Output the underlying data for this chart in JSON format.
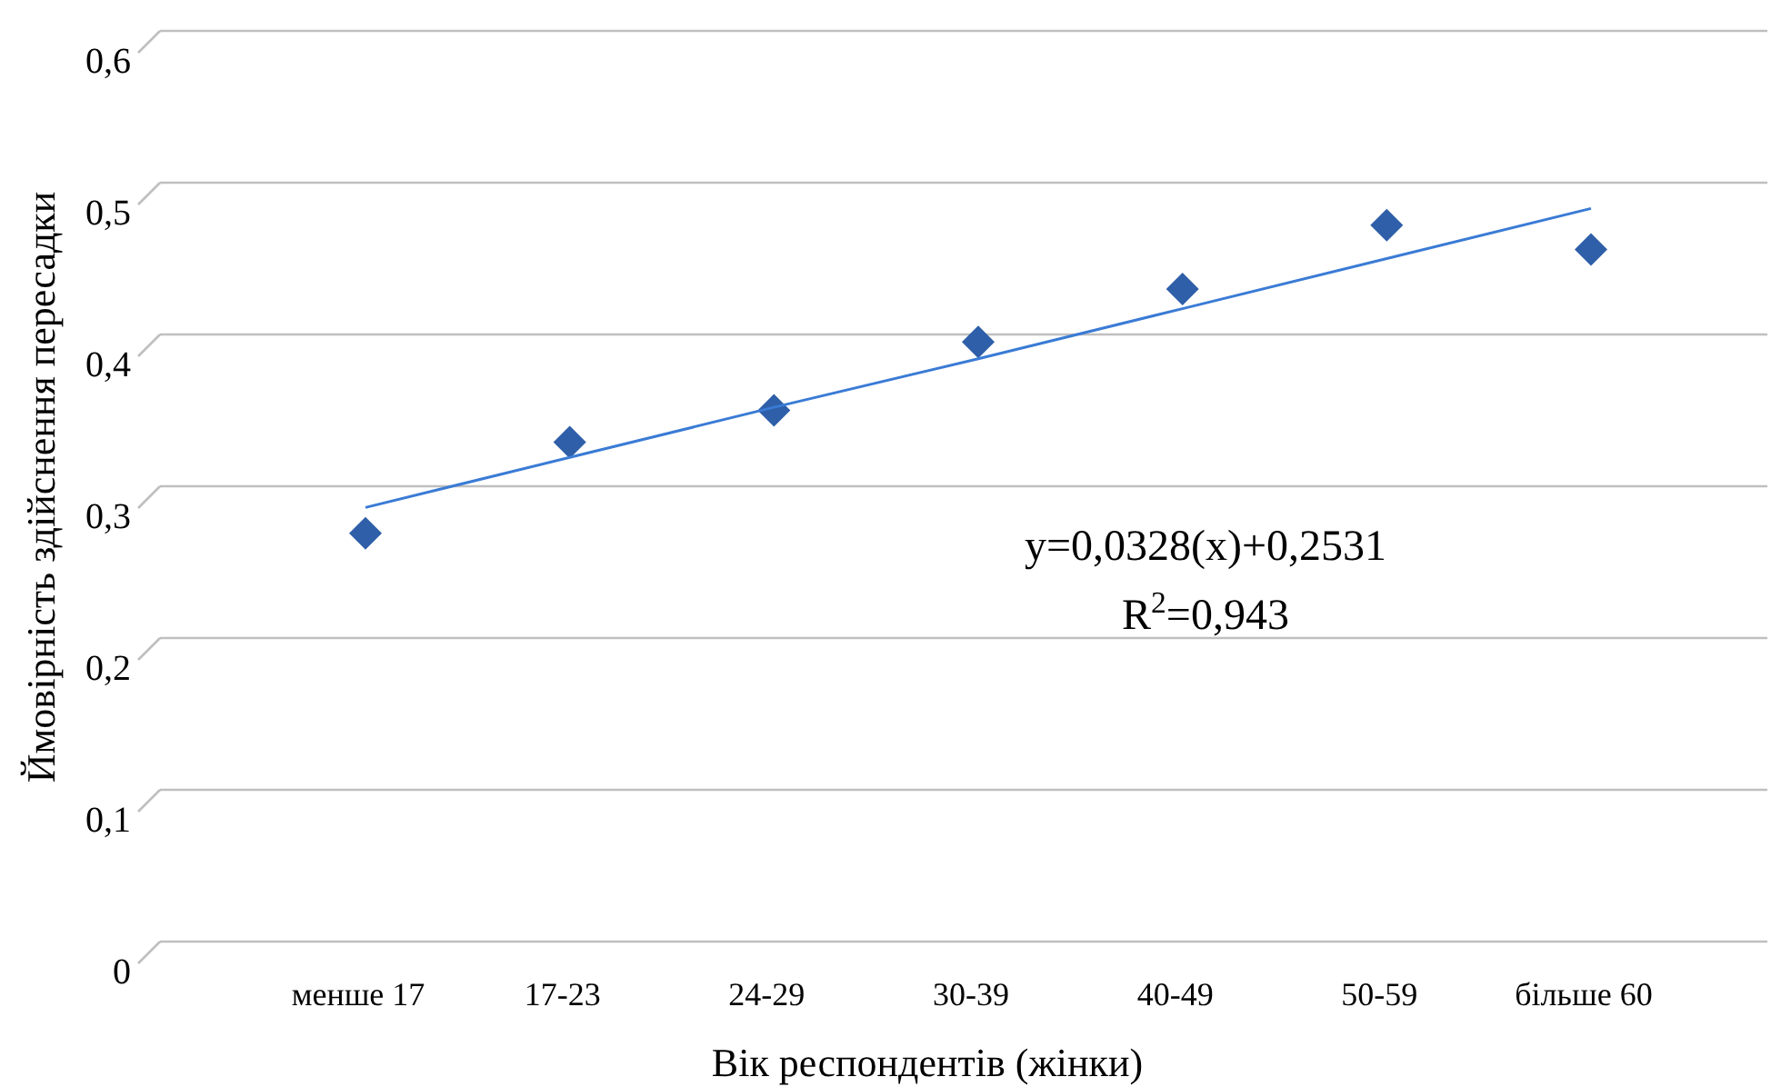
{
  "chart_data": {
    "type": "scatter",
    "xlabel": "Вік респондентів (жінки)",
    "ylabel": "Ймовірність здійснення пересадки",
    "categories": [
      "менше 17",
      "17-23",
      "24-29",
      "30-39",
      "40-49",
      "50-59",
      "більше 60"
    ],
    "series": [
      {
        "color": "#2e5fa8",
        "marker": "diamond",
        "values": [
          0.269,
          0.329,
          0.35,
          0.395,
          0.43,
          0.472,
          0.456
        ]
      },
      {
        "type": "line",
        "color": "#3a7bd5",
        "marker": "none",
        "values": [
          0.286,
          0.319,
          0.352,
          0.384,
          0.417,
          0.45,
          0.483
        ]
      }
    ],
    "ylim": [
      0,
      0.6
    ],
    "yticks": [
      0,
      {
        "value": 0.1,
        "label": "0,1"
      },
      {
        "value": 0.2,
        "label": "0,2"
      },
      {
        "value": 0.3,
        "label": "0,3"
      },
      {
        "value": 0.4,
        "label": "0,4"
      },
      {
        "value": 0.5,
        "label": "0,5"
      },
      {
        "value": 0.6,
        "label": "0,6"
      }
    ],
    "grid": "y",
    "annotations": [
      "y=0,0328(x)+0,2531",
      "R$^{2}$=0,943"
    ]
  }
}
